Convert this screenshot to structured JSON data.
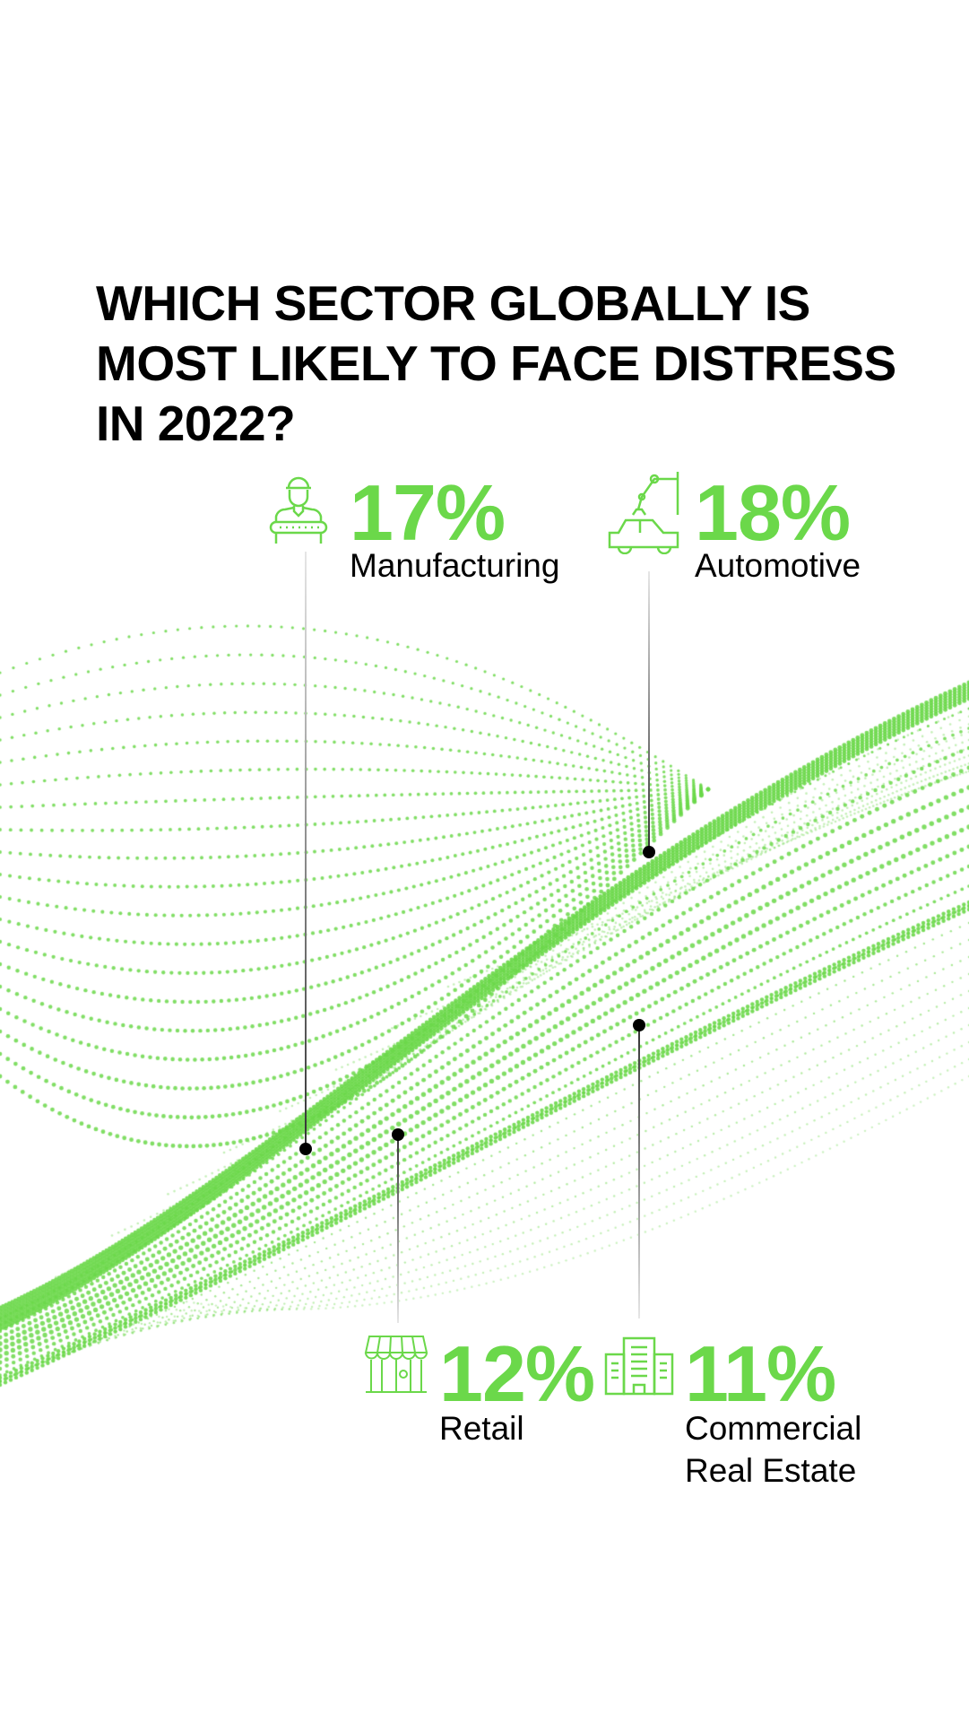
{
  "title": {
    "lines": [
      "WHICH SECTOR GLOBALLY IS",
      "MOST LIKELY TO FACE DISTRESS",
      "IN 2022?"
    ]
  },
  "colors": {
    "accent": "#6bd84a",
    "text": "#000000"
  },
  "sectors": [
    {
      "percent": "17%",
      "label": "Manufacturing",
      "icon": "factory-worker-icon"
    },
    {
      "percent": "18%",
      "label": "Automotive",
      "icon": "robot-arm-car-icon"
    },
    {
      "percent": "12%",
      "label": "Retail",
      "icon": "storefront-icon"
    },
    {
      "percent": "11%",
      "label_lines": [
        "Commercial",
        "Real Estate"
      ],
      "icon": "office-buildings-icon"
    }
  ],
  "chart_data": {
    "type": "bar",
    "title": "WHICH SECTOR GLOBALLY IS MOST LIKELY TO FACE DISTRESS IN 2022?",
    "categories": [
      "Manufacturing",
      "Automotive",
      "Retail",
      "Commercial Real Estate"
    ],
    "values": [
      17,
      18,
      12,
      11
    ],
    "unit": "%"
  }
}
